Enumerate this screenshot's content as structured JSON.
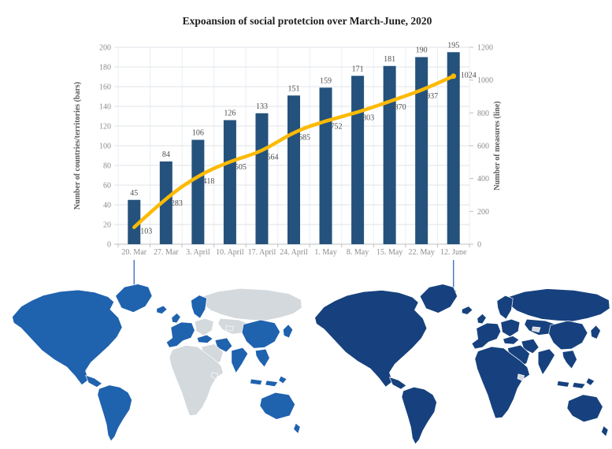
{
  "title": "Expoansion of social protetcion over March-June, 2020",
  "chart_data": {
    "type": "bar",
    "title": "Expoansion of social protetcion over March-June, 2020",
    "categories": [
      "20. Mar",
      "27. Mar",
      "3. April",
      "10. April",
      "17. April",
      "24. April",
      "1. May",
      "8. May",
      "15. May",
      "22. May",
      "12. June"
    ],
    "series": [
      {
        "name": "Number of countries/territories (bars)",
        "type": "bar",
        "axis": "left",
        "color": "#24527C",
        "values": [
          45,
          84,
          106,
          126,
          133,
          151,
          159,
          171,
          181,
          190,
          195
        ]
      },
      {
        "name": "Number of measures (line)",
        "type": "line",
        "axis": "right",
        "color": "#FCBA04",
        "values": [
          103,
          283,
          418,
          505,
          564,
          685,
          752,
          803,
          870,
          937,
          1024
        ]
      }
    ],
    "left_axis": {
      "label": "Number of countries/territories (bars)",
      "min": 0,
      "max": 200,
      "step": 20,
      "ticks": [
        0,
        20,
        40,
        60,
        80,
        100,
        120,
        140,
        160,
        180,
        200
      ]
    },
    "right_axis": {
      "label": "Number of measures (line)",
      "min": 0,
      "max": 1200,
      "step": 200,
      "ticks": [
        0,
        200,
        400,
        600,
        800,
        1000,
        1200
      ]
    },
    "grid": true,
    "legend_position": "none"
  },
  "annotations": {
    "arrows": [
      {
        "name": "arrow-to-left-map",
        "from_category": "20. Mar"
      },
      {
        "name": "arrow-to-right-map",
        "from_category": "12. June"
      }
    ]
  },
  "maps": {
    "left": {
      "name": "world-map-coverage-20-march",
      "covered_color": "#1F62AE",
      "uncovered_color": "#D3D9DD",
      "covered_regions": [
        "greenland",
        "iceland",
        "north-america",
        "central-america",
        "south-america",
        "uk",
        "western-europe",
        "scandinavia",
        "turkey",
        "iran",
        "india",
        "china",
        "southeast-asia",
        "indonesia",
        "japan",
        "australia",
        "new-zealand"
      ]
    },
    "right": {
      "name": "world-map-coverage-12-june",
      "covered_color": "#16417E",
      "uncovered_color": "#D3D9DD",
      "covered_regions": [
        "greenland",
        "iceland",
        "north-america",
        "central-america",
        "south-america",
        "uk",
        "western-europe",
        "scandinavia",
        "eastern-europe",
        "russia",
        "central-asia",
        "turkey",
        "iran",
        "middle-east",
        "africa",
        "india",
        "china",
        "southeast-asia",
        "indonesia",
        "japan",
        "australia",
        "new-zealand"
      ]
    }
  },
  "palette": {
    "bar": "#24527C",
    "line": "#FCBA04",
    "arrow": "#4472C4",
    "grid_h": "#DFE3E8",
    "grid_v": "#EAEFF5",
    "axis_line": "#BFBFBF",
    "tick_text": "#8C8C8C",
    "data_label_text": "#4D4D4D",
    "title_text": "#1F1F1F",
    "map_border": "#FFFFFF",
    "background": "#FFFFFF"
  }
}
